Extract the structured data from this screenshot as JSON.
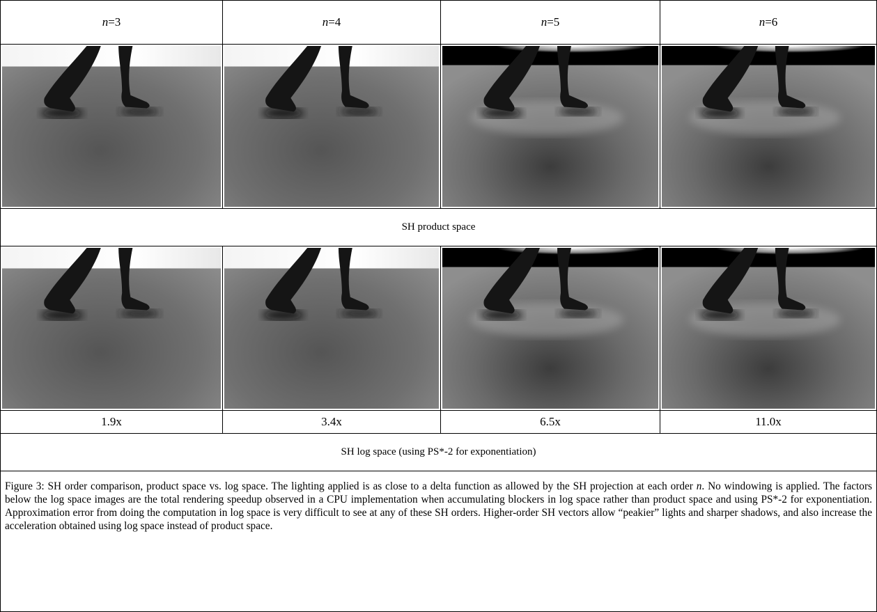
{
  "header": {
    "orders": [
      {
        "variable": "n",
        "value": "=3"
      },
      {
        "variable": "n",
        "value": "=4"
      },
      {
        "variable": "n",
        "value": "=5"
      },
      {
        "variable": "n",
        "value": "=6"
      }
    ]
  },
  "rows": {
    "product_label": "SH product space",
    "speedups": [
      "1.9x",
      "3.4x",
      "6.5x",
      "11.0x"
    ],
    "log_label": "SH log space (using PS*-2 for exponentiation)"
  },
  "caption": [
    "Figure 3: SH order comparison, product space vs. log space.  The lighting applied is as close to a delta function as allowed by the SH projection at each order ",
    "n",
    ".  No windowing is applied. The factors below the log space images are the total rendering speedup observed in a CPU implementation when accumulating blockers in log space rather than product space and using PS*-2 for exponentiation.  Approximation error from doing the computation in log space is very difficult to see at any of these SH orders.  Higher-order SH vectors allow “peakier” lights and sharper shadows, and also increase the acceleration obtained using log space instead of product space."
  ]
}
